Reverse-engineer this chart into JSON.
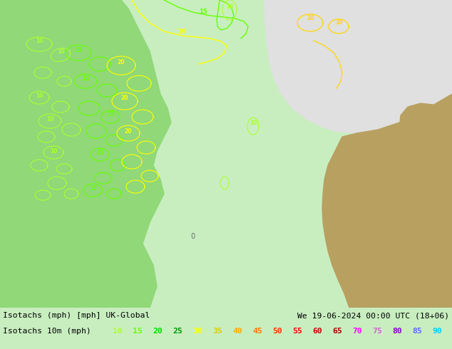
{
  "title_line1": "Isotachs (mph) [mph] UK-Global",
  "title_line2": "We 19-06-2024 00:00 UTC (18+06)",
  "legend_label": "Isotachs 10m (mph)",
  "legend_values": [
    10,
    15,
    20,
    25,
    30,
    35,
    40,
    45,
    50,
    55,
    60,
    65,
    70,
    75,
    80,
    85,
    90
  ],
  "legend_colors": [
    "#adff2f",
    "#66ff00",
    "#00dd00",
    "#009900",
    "#ffff00",
    "#ddcc00",
    "#ffaa00",
    "#ff7700",
    "#ff3300",
    "#ff0000",
    "#cc0000",
    "#aa0000",
    "#ff00ff",
    "#cc66cc",
    "#8800cc",
    "#6666ff",
    "#00ccff"
  ],
  "sea_color": "#c8eec0",
  "land_left_color": "#90d878",
  "land_upper_right_color": "#e0e0e0",
  "land_right_color": "#b8a060",
  "bottom_bar_color": "#90ee90",
  "figwidth": 6.34,
  "figheight": 4.9,
  "dpi": 100,
  "contour10_color": "#adff2f",
  "contour15_color": "#66ff00",
  "contour20_color": "#ffff00",
  "contour25_color": "#ffd700",
  "label_0_color": "#666666"
}
